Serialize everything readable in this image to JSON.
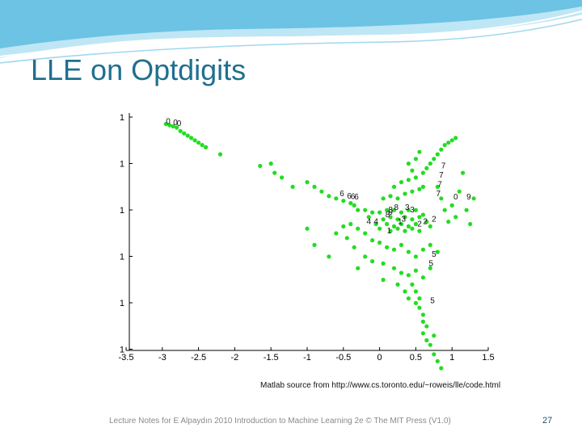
{
  "slide": {
    "title": "LLE on Optdigits",
    "source_note": "Matlab source from http://www.cs.toronto.edu/~roweis/lle/code.html",
    "footer": "Lecture Notes for E Alpaydın 2010 Introduction to Machine Learning 2e © The MIT Press (V1.0)",
    "page_number": "27"
  },
  "colors": {
    "title": "#1f6f8f",
    "points": "#22dd22",
    "labels": "#111111",
    "banner": "#4fb3d9"
  },
  "chart_data": {
    "type": "scatter",
    "xlim": [
      -3.5,
      1.5
    ],
    "x_ticks": [
      "-3.5",
      "-3",
      "-2.5",
      "-2",
      "-1.5",
      "-1",
      "-0.5",
      "0",
      "0.5",
      "1",
      "1.5"
    ],
    "y_ticks": [
      "1",
      "1",
      "1",
      "1",
      "1",
      "1"
    ],
    "grid": false,
    "points": [
      [
        -2.95,
        0.87
      ],
      [
        -2.9,
        0.865
      ],
      [
        -2.85,
        0.86
      ],
      [
        -2.8,
        0.855
      ],
      [
        -2.75,
        0.84
      ],
      [
        -2.7,
        0.83
      ],
      [
        -2.65,
        0.82
      ],
      [
        -2.6,
        0.81
      ],
      [
        -2.55,
        0.8
      ],
      [
        -2.5,
        0.79
      ],
      [
        -2.45,
        0.78
      ],
      [
        -2.4,
        0.77
      ],
      [
        -2.2,
        0.74
      ],
      [
        -1.65,
        0.69
      ],
      [
        -1.45,
        0.66
      ],
      [
        -1.35,
        0.64
      ],
      [
        -1.5,
        0.7
      ],
      [
        -1.0,
        0.62
      ],
      [
        -0.9,
        0.6
      ],
      [
        -1.2,
        0.6
      ],
      [
        -0.8,
        0.58
      ],
      [
        -0.7,
        0.56
      ],
      [
        -0.6,
        0.55
      ],
      [
        -0.5,
        0.54
      ],
      [
        -0.4,
        0.53
      ],
      [
        -0.35,
        0.52
      ],
      [
        -0.3,
        0.5
      ],
      [
        -0.2,
        0.5
      ],
      [
        -0.1,
        0.49
      ],
      [
        0.0,
        0.49
      ],
      [
        0.1,
        0.5
      ],
      [
        0.2,
        0.5
      ],
      [
        0.3,
        0.49
      ],
      [
        0.4,
        0.5
      ],
      [
        0.5,
        0.5
      ],
      [
        -0.15,
        0.47
      ],
      [
        0.05,
        0.46
      ],
      [
        0.15,
        0.47
      ],
      [
        0.25,
        0.46
      ],
      [
        0.35,
        0.47
      ],
      [
        0.45,
        0.46
      ],
      [
        0.55,
        0.47
      ],
      [
        0.6,
        0.48
      ],
      [
        -0.05,
        0.44
      ],
      [
        0.1,
        0.44
      ],
      [
        0.2,
        0.43
      ],
      [
        0.3,
        0.44
      ],
      [
        0.4,
        0.43
      ],
      [
        0.5,
        0.44
      ],
      [
        0.65,
        0.45
      ],
      [
        0.0,
        0.42
      ],
      [
        0.15,
        0.41
      ],
      [
        0.25,
        0.42
      ],
      [
        0.35,
        0.41
      ],
      [
        0.45,
        0.42
      ],
      [
        0.55,
        0.41
      ],
      [
        0.7,
        0.43
      ],
      [
        0.05,
        0.55
      ],
      [
        0.15,
        0.56
      ],
      [
        0.25,
        0.55
      ],
      [
        0.35,
        0.57
      ],
      [
        0.45,
        0.58
      ],
      [
        0.55,
        0.59
      ],
      [
        0.6,
        0.6
      ],
      [
        0.2,
        0.6
      ],
      [
        0.3,
        0.62
      ],
      [
        0.4,
        0.63
      ],
      [
        0.5,
        0.64
      ],
      [
        0.6,
        0.66
      ],
      [
        0.65,
        0.68
      ],
      [
        0.7,
        0.7
      ],
      [
        0.75,
        0.72
      ],
      [
        0.8,
        0.74
      ],
      [
        0.85,
        0.76
      ],
      [
        0.9,
        0.78
      ],
      [
        0.95,
        0.79
      ],
      [
        1.0,
        0.8
      ],
      [
        1.05,
        0.81
      ],
      [
        0.4,
        0.7
      ],
      [
        0.5,
        0.72
      ],
      [
        0.55,
        0.75
      ],
      [
        0.45,
        0.67
      ],
      [
        0.8,
        0.6
      ],
      [
        0.85,
        0.55
      ],
      [
        0.9,
        0.5
      ],
      [
        1.0,
        0.52
      ],
      [
        1.1,
        0.58
      ],
      [
        0.95,
        0.45
      ],
      [
        1.05,
        0.47
      ],
      [
        1.2,
        0.5
      ],
      [
        1.3,
        0.55
      ],
      [
        -0.4,
        0.44
      ],
      [
        -0.3,
        0.42
      ],
      [
        -0.5,
        0.43
      ],
      [
        -0.6,
        0.4
      ],
      [
        -0.45,
        0.38
      ],
      [
        -0.2,
        0.4
      ],
      [
        -0.1,
        0.37
      ],
      [
        0.0,
        0.36
      ],
      [
        0.1,
        0.34
      ],
      [
        0.2,
        0.33
      ],
      [
        0.3,
        0.35
      ],
      [
        0.4,
        0.32
      ],
      [
        0.5,
        0.3
      ],
      [
        0.6,
        0.33
      ],
      [
        0.7,
        0.35
      ],
      [
        0.8,
        0.32
      ],
      [
        -0.2,
        0.3
      ],
      [
        -0.1,
        0.28
      ],
      [
        0.05,
        0.27
      ],
      [
        0.2,
        0.25
      ],
      [
        0.3,
        0.23
      ],
      [
        0.4,
        0.22
      ],
      [
        0.5,
        0.24
      ],
      [
        0.6,
        0.21
      ],
      [
        0.7,
        0.25
      ],
      [
        0.45,
        0.18
      ],
      [
        0.5,
        0.15
      ],
      [
        0.55,
        0.12
      ],
      [
        0.5,
        0.1
      ],
      [
        0.55,
        0.08
      ],
      [
        0.6,
        0.05
      ],
      [
        0.6,
        0.02
      ],
      [
        0.65,
        0.0
      ],
      [
        0.6,
        -0.03
      ],
      [
        0.65,
        -0.06
      ],
      [
        0.7,
        -0.08
      ],
      [
        0.75,
        -0.12
      ],
      [
        0.8,
        -0.15
      ],
      [
        0.75,
        -0.04
      ],
      [
        0.85,
        -0.18
      ],
      [
        0.4,
        0.12
      ],
      [
        0.35,
        0.15
      ],
      [
        0.25,
        0.18
      ],
      [
        -0.35,
        0.34
      ],
      [
        -0.7,
        0.3
      ],
      [
        -0.9,
        0.35
      ],
      [
        -1.0,
        0.42
      ],
      [
        -0.3,
        0.25
      ],
      [
        0.05,
        0.2
      ],
      [
        1.15,
        0.66
      ],
      [
        1.25,
        0.44
      ]
    ],
    "labels": [
      {
        "text": "0",
        "x": -2.95,
        "y": 0.87
      },
      {
        "text": "0",
        "x": -2.85,
        "y": 0.865
      },
      {
        "text": "0",
        "x": -2.8,
        "y": 0.862
      },
      {
        "text": "6",
        "x": -0.55,
        "y": 0.56
      },
      {
        "text": "6",
        "x": -0.45,
        "y": 0.55
      },
      {
        "text": "6",
        "x": -0.4,
        "y": 0.548
      },
      {
        "text": "6",
        "x": -0.35,
        "y": 0.545
      },
      {
        "text": "7",
        "x": 0.85,
        "y": 0.68
      },
      {
        "text": "7",
        "x": 0.82,
        "y": 0.64
      },
      {
        "text": "7",
        "x": 0.8,
        "y": 0.6
      },
      {
        "text": "7",
        "x": 0.78,
        "y": 0.56
      },
      {
        "text": "0",
        "x": 1.02,
        "y": 0.545
      },
      {
        "text": "9",
        "x": 1.2,
        "y": 0.545
      },
      {
        "text": "4",
        "x": -0.18,
        "y": 0.44
      },
      {
        "text": "4",
        "x": -0.08,
        "y": 0.44
      },
      {
        "text": "8",
        "x": 0.2,
        "y": 0.5
      },
      {
        "text": "8",
        "x": 0.12,
        "y": 0.49
      },
      {
        "text": "8",
        "x": 0.08,
        "y": 0.47
      },
      {
        "text": "3",
        "x": 0.35,
        "y": 0.5
      },
      {
        "text": "3",
        "x": 0.42,
        "y": 0.49
      },
      {
        "text": "1",
        "x": 0.25,
        "y": 0.44
      },
      {
        "text": "3",
        "x": 0.3,
        "y": 0.45
      },
      {
        "text": "2",
        "x": 0.6,
        "y": 0.44
      },
      {
        "text": "2",
        "x": 0.72,
        "y": 0.45
      },
      {
        "text": "2",
        "x": 0.52,
        "y": 0.43
      },
      {
        "text": "1",
        "x": 0.1,
        "y": 0.4
      },
      {
        "text": "9",
        "x": 0.12,
        "y": 0.48
      },
      {
        "text": "5",
        "x": 0.72,
        "y": 0.3
      },
      {
        "text": "5",
        "x": 0.68,
        "y": 0.26
      },
      {
        "text": "5",
        "x": 0.7,
        "y": 0.1
      }
    ]
  }
}
